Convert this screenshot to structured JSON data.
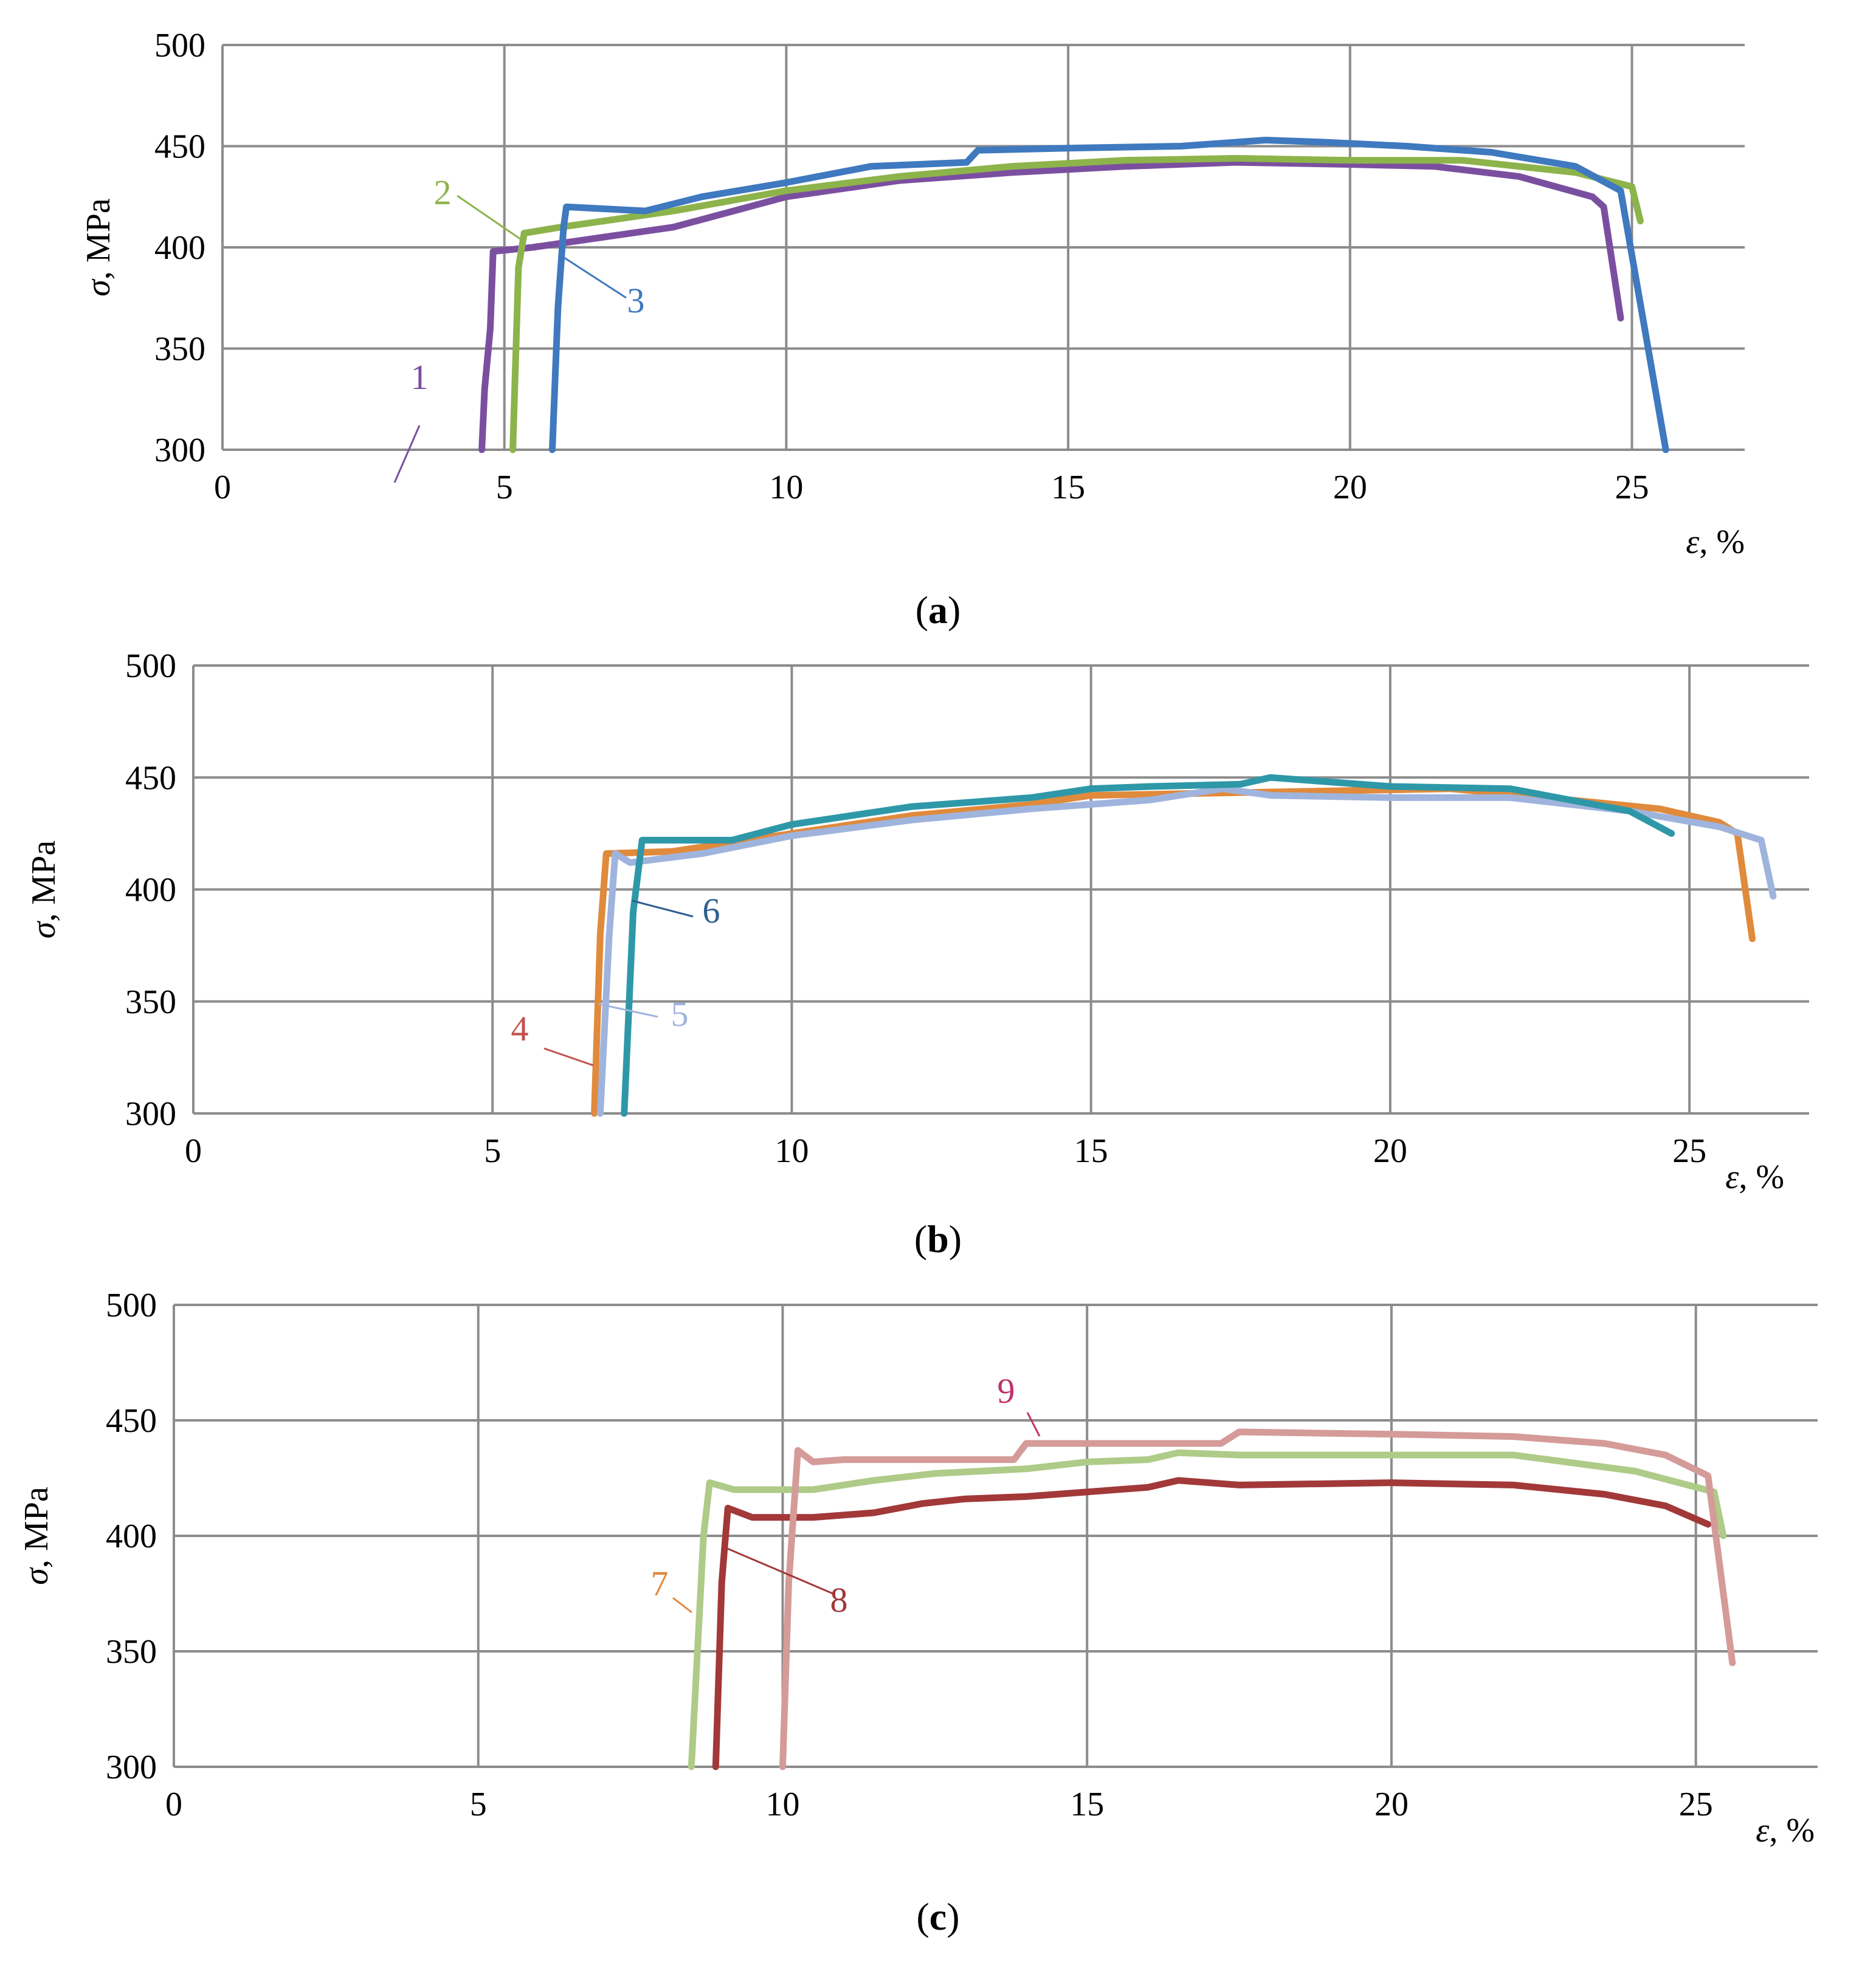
{
  "chart_data": [
    {
      "panel": "a",
      "caption": "(a)",
      "type": "line",
      "xlabel": "ε, %",
      "ylabel": "σ, MPa",
      "xlim": [
        0,
        27
      ],
      "ylim": [
        300,
        500
      ],
      "xticks": [
        0,
        5,
        10,
        15,
        20,
        25
      ],
      "yticks": [
        300,
        350,
        400,
        450,
        500
      ],
      "grid": true,
      "series": [
        {
          "name": "1",
          "color": "#7b4fa0",
          "points": [
            [
              4.6,
              300
            ],
            [
              4.65,
              330
            ],
            [
              4.75,
              360
            ],
            [
              4.8,
              398
            ],
            [
              5.5,
              400
            ],
            [
              6,
              402
            ],
            [
              8,
              410
            ],
            [
              10,
              425
            ],
            [
              12,
              433
            ],
            [
              14,
              437
            ],
            [
              16,
              440
            ],
            [
              18,
              442
            ],
            [
              20,
              441
            ],
            [
              21.5,
              440
            ],
            [
              23,
              435
            ],
            [
              24.3,
              425
            ],
            [
              24.5,
              420
            ],
            [
              24.8,
              365
            ]
          ]
        },
        {
          "name": "2",
          "color": "#8db34b",
          "points": [
            [
              5.15,
              300
            ],
            [
              5.25,
              390
            ],
            [
              5.35,
              407
            ],
            [
              6,
              410
            ],
            [
              8,
              418
            ],
            [
              10,
              428
            ],
            [
              12,
              435
            ],
            [
              14,
              440
            ],
            [
              16,
              443
            ],
            [
              18,
              444
            ],
            [
              20,
              443
            ],
            [
              22,
              443
            ],
            [
              24,
              437
            ],
            [
              25,
              430
            ],
            [
              25.15,
              413
            ]
          ]
        },
        {
          "name": "3",
          "color": "#3f79bf",
          "points": [
            [
              5.85,
              300
            ],
            [
              5.95,
              370
            ],
            [
              6.05,
              410
            ],
            [
              6.1,
              420
            ],
            [
              7.5,
              418
            ],
            [
              8.5,
              425
            ],
            [
              10,
              432
            ],
            [
              11.5,
              440
            ],
            [
              13.2,
              442
            ],
            [
              13.4,
              448
            ],
            [
              15,
              449
            ],
            [
              17,
              450
            ],
            [
              18.5,
              453
            ],
            [
              19.5,
              452
            ],
            [
              21,
              450
            ],
            [
              22.5,
              447
            ],
            [
              24,
              440
            ],
            [
              24.8,
              428
            ],
            [
              25.6,
              300
            ]
          ]
        }
      ],
      "annotations": [
        {
          "label": "1",
          "color": "#7b4fa0"
        },
        {
          "label": "2",
          "color": "#8db34b"
        },
        {
          "label": "3",
          "color": "#3f79bf"
        }
      ]
    },
    {
      "panel": "b",
      "caption": "(b)",
      "type": "line",
      "xlabel": "ε, %",
      "ylabel": "σ, MPa",
      "xlim": [
        0,
        27
      ],
      "ylim": [
        300,
        500
      ],
      "xticks": [
        0,
        5,
        10,
        15,
        20,
        25
      ],
      "yticks": [
        300,
        350,
        400,
        450,
        500
      ],
      "grid": true,
      "series": [
        {
          "name": "4",
          "color": "#e08a3c",
          "points": [
            [
              6.7,
              300
            ],
            [
              6.8,
              380
            ],
            [
              6.9,
              416
            ],
            [
              8,
              417
            ],
            [
              10,
              425
            ],
            [
              12,
              433
            ],
            [
              14,
              438
            ],
            [
              15,
              442
            ],
            [
              17,
              443
            ],
            [
              19,
              444
            ],
            [
              21,
              445
            ],
            [
              23,
              440
            ],
            [
              24.5,
              436
            ],
            [
              25.5,
              430
            ],
            [
              25.8,
              425
            ],
            [
              26.05,
              378
            ]
          ]
        },
        {
          "name": "5",
          "color": "#9fb4dd",
          "points": [
            [
              6.8,
              300
            ],
            [
              6.95,
              380
            ],
            [
              7.05,
              416
            ],
            [
              7.3,
              412
            ],
            [
              8.5,
              416
            ],
            [
              10,
              424
            ],
            [
              12,
              431
            ],
            [
              14,
              436
            ],
            [
              16,
              440
            ],
            [
              17.2,
              445
            ],
            [
              18,
              442
            ],
            [
              20,
              441
            ],
            [
              22,
              441
            ],
            [
              24,
              435
            ],
            [
              25.5,
              428
            ],
            [
              26.2,
              422
            ],
            [
              26.4,
              397
            ]
          ]
        },
        {
          "name": "6",
          "color": "#2e98a8",
          "points": [
            [
              7.2,
              300
            ],
            [
              7.35,
              390
            ],
            [
              7.5,
              422
            ],
            [
              9,
              422
            ],
            [
              10,
              429
            ],
            [
              12,
              437
            ],
            [
              14,
              441
            ],
            [
              15,
              445
            ],
            [
              16,
              446
            ],
            [
              17.5,
              447
            ],
            [
              18,
              450
            ],
            [
              20,
              446
            ],
            [
              22,
              445
            ],
            [
              23,
              440
            ],
            [
              24,
              435
            ],
            [
              24.7,
              425
            ]
          ]
        }
      ],
      "annotations": [
        {
          "label": "4",
          "color": "#c0504d"
        },
        {
          "label": "5",
          "color": "#9fb4dd"
        },
        {
          "label": "6",
          "color": "#2f5f8f"
        }
      ]
    },
    {
      "panel": "c",
      "caption": "(c)",
      "type": "line",
      "xlabel": "ε, %",
      "ylabel": "σ, MPa",
      "xlim": [
        0,
        27
      ],
      "ylim": [
        300,
        500
      ],
      "xticks": [
        0,
        5,
        10,
        15,
        20,
        25
      ],
      "yticks": [
        300,
        350,
        400,
        450,
        500
      ],
      "grid": true,
      "series": [
        {
          "name": "7",
          "color": "#aecb88",
          "points": [
            [
              8.5,
              300
            ],
            [
              8.6,
              350
            ],
            [
              8.7,
              400
            ],
            [
              8.8,
              423
            ],
            [
              9.2,
              420
            ],
            [
              10.5,
              420
            ],
            [
              11.5,
              424
            ],
            [
              12.5,
              427
            ],
            [
              14,
              429
            ],
            [
              15,
              432
            ],
            [
              16,
              433
            ],
            [
              16.5,
              436
            ],
            [
              17.5,
              435
            ],
            [
              20,
              435
            ],
            [
              22,
              435
            ],
            [
              24,
              428
            ],
            [
              25.3,
              419
            ],
            [
              25.45,
              400
            ]
          ]
        },
        {
          "name": "8",
          "color": "#a23838",
          "points": [
            [
              8.9,
              300
            ],
            [
              9.0,
              380
            ],
            [
              9.1,
              412
            ],
            [
              9.5,
              408
            ],
            [
              10.5,
              408
            ],
            [
              11.5,
              410
            ],
            [
              12.3,
              414
            ],
            [
              13,
              416
            ],
            [
              14,
              417
            ],
            [
              15,
              419
            ],
            [
              16,
              421
            ],
            [
              16.5,
              424
            ],
            [
              17.5,
              422
            ],
            [
              20,
              423
            ],
            [
              22,
              422
            ],
            [
              23.5,
              418
            ],
            [
              24.5,
              413
            ],
            [
              25.2,
              405
            ]
          ]
        },
        {
          "name": "9",
          "color": "#d49b99",
          "points": [
            [
              10,
              300
            ],
            [
              10.1,
              380
            ],
            [
              10.25,
              437
            ],
            [
              10.5,
              432
            ],
            [
              11,
              433
            ],
            [
              13,
              433
            ],
            [
              13.8,
              433
            ],
            [
              14,
              440
            ],
            [
              16,
              440
            ],
            [
              17.2,
              440
            ],
            [
              17.5,
              445
            ],
            [
              20,
              444
            ],
            [
              22,
              443
            ],
            [
              23.5,
              440
            ],
            [
              24.5,
              435
            ],
            [
              25.2,
              426
            ],
            [
              25.6,
              345
            ]
          ]
        }
      ],
      "annotations": [
        {
          "label": "7",
          "color": "#e0893c"
        },
        {
          "label": "8",
          "color": "#a23838"
        },
        {
          "label": "9",
          "color": "#c0306b"
        }
      ]
    }
  ]
}
